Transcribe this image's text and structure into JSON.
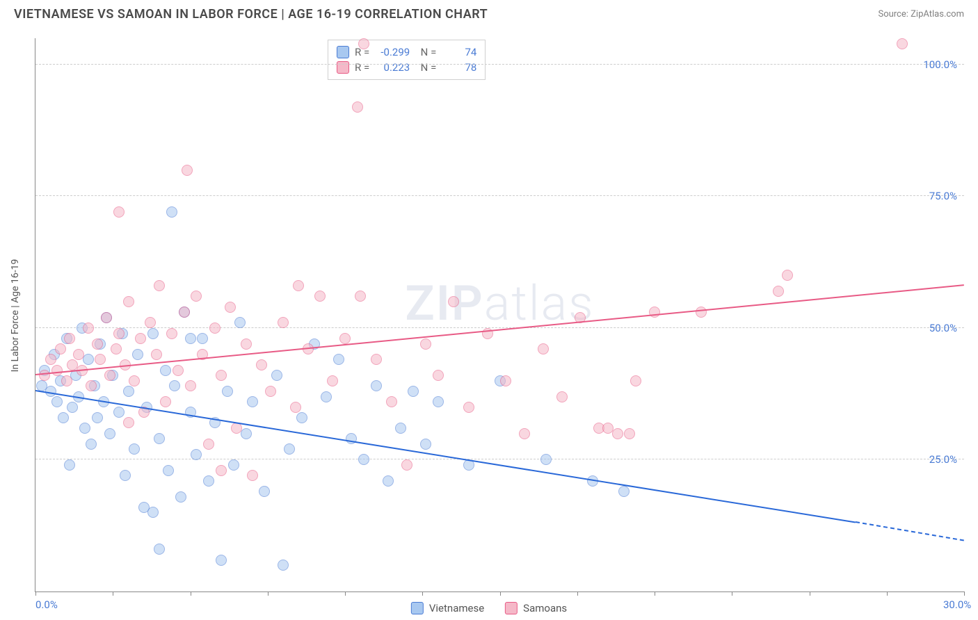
{
  "title": "VIETNAMESE VS SAMOAN IN LABOR FORCE | AGE 16-19 CORRELATION CHART",
  "source": "Source: ZipAtlas.com",
  "ylabel": "In Labor Force | Age 16-19",
  "watermark_bold": "ZIP",
  "watermark_light": "atlas",
  "chart": {
    "type": "scatter",
    "xlim": [
      0,
      30
    ],
    "ylim": [
      0,
      105
    ],
    "xticks": [
      0,
      2.5,
      5,
      7.5,
      10,
      12.5,
      15,
      17.5,
      20,
      22.5,
      25,
      27.5,
      30
    ],
    "xtick_labels": {
      "0": "0.0%",
      "30": "30.0%"
    },
    "yticks": [
      25,
      50,
      75,
      100
    ],
    "ytick_labels": {
      "25": "25.0%",
      "50": "50.0%",
      "75": "75.0%",
      "100": "100.0%"
    },
    "grid_color": "#cccccc",
    "background_color": "#ffffff",
    "axis_color": "#888888",
    "point_radius": 8,
    "point_opacity": 0.55,
    "series": [
      {
        "name": "Vietnamese",
        "fill_color": "#a8c8f0",
        "stroke_color": "#4a7bd4",
        "trend_color": "#2968d8",
        "R": "-0.299",
        "N": "74",
        "trend": {
          "x0": 0,
          "y0": 38,
          "x1": 26.5,
          "y1": 13,
          "dash_x1": 30,
          "dash_y1": 9.5
        },
        "points": [
          [
            0.2,
            39
          ],
          [
            0.3,
            42
          ],
          [
            0.5,
            38
          ],
          [
            0.6,
            45
          ],
          [
            0.7,
            36
          ],
          [
            0.8,
            40
          ],
          [
            0.9,
            33
          ],
          [
            1.0,
            48
          ],
          [
            1.1,
            24
          ],
          [
            1.2,
            35
          ],
          [
            1.3,
            41
          ],
          [
            1.4,
            37
          ],
          [
            1.5,
            50
          ],
          [
            1.6,
            31
          ],
          [
            1.7,
            44
          ],
          [
            1.8,
            28
          ],
          [
            1.9,
            39
          ],
          [
            2.0,
            33
          ],
          [
            2.1,
            47
          ],
          [
            2.2,
            36
          ],
          [
            2.3,
            52
          ],
          [
            2.4,
            30
          ],
          [
            2.5,
            41
          ],
          [
            2.7,
            34
          ],
          [
            2.8,
            49
          ],
          [
            2.9,
            22
          ],
          [
            3.0,
            38
          ],
          [
            3.2,
            27
          ],
          [
            3.3,
            45
          ],
          [
            3.5,
            16
          ],
          [
            3.6,
            35
          ],
          [
            3.8,
            49
          ],
          [
            4.0,
            29
          ],
          [
            4.2,
            42
          ],
          [
            4.3,
            23
          ],
          [
            4.5,
            39
          ],
          [
            4.7,
            18
          ],
          [
            4.8,
            53
          ],
          [
            5.0,
            34
          ],
          [
            5.2,
            26
          ],
          [
            5.4,
            48
          ],
          [
            5.6,
            21
          ],
          [
            5.8,
            32
          ],
          [
            6.0,
            6
          ],
          [
            6.2,
            38
          ],
          [
            6.4,
            24
          ],
          [
            6.6,
            51
          ],
          [
            6.8,
            30
          ],
          [
            7.0,
            36
          ],
          [
            7.4,
            19
          ],
          [
            7.8,
            41
          ],
          [
            8.0,
            5
          ],
          [
            8.2,
            27
          ],
          [
            8.6,
            33
          ],
          [
            9.0,
            47
          ],
          [
            9.4,
            37
          ],
          [
            9.8,
            44
          ],
          [
            10.2,
            29
          ],
          [
            10.6,
            25
          ],
          [
            11.0,
            39
          ],
          [
            11.4,
            21
          ],
          [
            11.8,
            31
          ],
          [
            12.2,
            38
          ],
          [
            12.6,
            28
          ],
          [
            13.0,
            36
          ],
          [
            14.0,
            24
          ],
          [
            15.0,
            40
          ],
          [
            16.5,
            25
          ],
          [
            18.0,
            21
          ],
          [
            19.0,
            19
          ],
          [
            4.4,
            72
          ],
          [
            4.0,
            8
          ],
          [
            3.8,
            15
          ],
          [
            5.0,
            48
          ]
        ]
      },
      {
        "name": "Samoans",
        "fill_color": "#f5b8c8",
        "stroke_color": "#e85a85",
        "trend_color": "#e85a85",
        "R": "0.223",
        "N": "78",
        "trend": {
          "x0": 0,
          "y0": 41,
          "x1": 30,
          "y1": 58
        },
        "points": [
          [
            0.3,
            41
          ],
          [
            0.5,
            44
          ],
          [
            0.7,
            42
          ],
          [
            0.8,
            46
          ],
          [
            1.0,
            40
          ],
          [
            1.1,
            48
          ],
          [
            1.2,
            43
          ],
          [
            1.4,
            45
          ],
          [
            1.5,
            42
          ],
          [
            1.7,
            50
          ],
          [
            1.8,
            39
          ],
          [
            2.0,
            47
          ],
          [
            2.1,
            44
          ],
          [
            2.3,
            52
          ],
          [
            2.4,
            41
          ],
          [
            2.6,
            46
          ],
          [
            2.7,
            49
          ],
          [
            2.9,
            43
          ],
          [
            3.0,
            55
          ],
          [
            3.2,
            40
          ],
          [
            3.4,
            48
          ],
          [
            3.5,
            34
          ],
          [
            3.7,
            51
          ],
          [
            3.9,
            45
          ],
          [
            4.0,
            58
          ],
          [
            4.2,
            36
          ],
          [
            4.4,
            49
          ],
          [
            4.6,
            42
          ],
          [
            4.8,
            53
          ],
          [
            5.0,
            39
          ],
          [
            5.2,
            56
          ],
          [
            5.4,
            45
          ],
          [
            5.6,
            28
          ],
          [
            5.8,
            50
          ],
          [
            6.0,
            41
          ],
          [
            6.3,
            54
          ],
          [
            6.5,
            31
          ],
          [
            6.8,
            47
          ],
          [
            7.0,
            22
          ],
          [
            7.3,
            43
          ],
          [
            7.6,
            38
          ],
          [
            8.0,
            51
          ],
          [
            8.4,
            35
          ],
          [
            8.8,
            46
          ],
          [
            9.2,
            56
          ],
          [
            9.6,
            40
          ],
          [
            10.0,
            48
          ],
          [
            10.4,
            92
          ],
          [
            10.6,
            104
          ],
          [
            11.0,
            44
          ],
          [
            11.5,
            36
          ],
          [
            12.0,
            24
          ],
          [
            12.6,
            47
          ],
          [
            13.0,
            41
          ],
          [
            13.5,
            55
          ],
          [
            14.0,
            35
          ],
          [
            14.6,
            49
          ],
          [
            15.2,
            40
          ],
          [
            15.8,
            30
          ],
          [
            16.4,
            46
          ],
          [
            17.0,
            37
          ],
          [
            17.6,
            52
          ],
          [
            18.2,
            31
          ],
          [
            18.8,
            30
          ],
          [
            19.4,
            40
          ],
          [
            20.0,
            53
          ],
          [
            24.0,
            57
          ],
          [
            24.3,
            60
          ],
          [
            28.0,
            104
          ],
          [
            2.7,
            72
          ],
          [
            4.9,
            80
          ],
          [
            6.0,
            23
          ],
          [
            3.0,
            32
          ],
          [
            8.5,
            58
          ],
          [
            10.5,
            56
          ],
          [
            18.5,
            31
          ],
          [
            19.2,
            30
          ],
          [
            21.5,
            53
          ]
        ]
      }
    ]
  },
  "legend": {
    "series1_label": "Vietnamese",
    "series2_label": "Samoans"
  }
}
